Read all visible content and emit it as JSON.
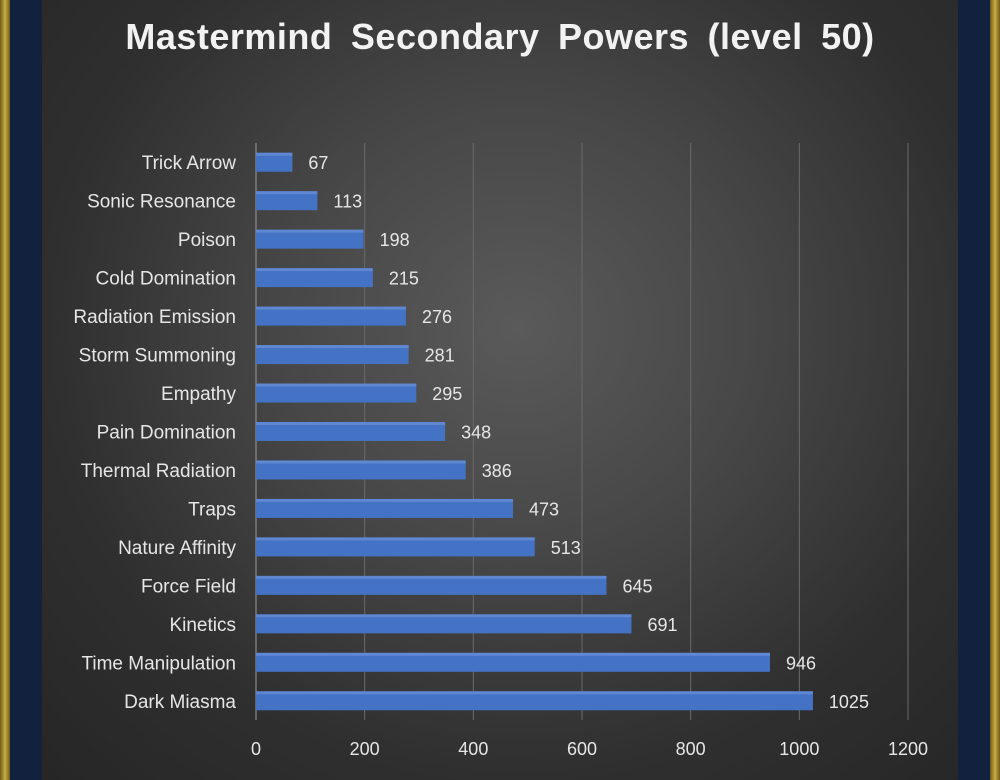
{
  "chart_data": {
    "type": "bar",
    "orientation": "horizontal",
    "title": "Mastermind Secondary Powers (level 50)",
    "categories": [
      "Trick Arrow",
      "Sonic Resonance",
      "Poison",
      "Cold Domination",
      "Radiation Emission",
      "Storm Summoning",
      "Empathy",
      "Pain Domination",
      "Thermal Radiation",
      "Traps",
      "Nature Affinity",
      "Force Field",
      "Kinetics",
      "Time Manipulation",
      "Dark Miasma"
    ],
    "values": [
      67,
      113,
      198,
      215,
      276,
      281,
      295,
      348,
      386,
      473,
      513,
      645,
      691,
      946,
      1025
    ],
    "xlim": [
      0,
      1200
    ],
    "xticks": [
      0,
      200,
      400,
      600,
      800,
      1000,
      1200
    ],
    "grid": "vertical",
    "bar_color": "#4472c4",
    "legend": "none"
  },
  "colors": {
    "frame": "#12213d",
    "gold": "#c9ac43",
    "text": "#e6e6e6"
  }
}
